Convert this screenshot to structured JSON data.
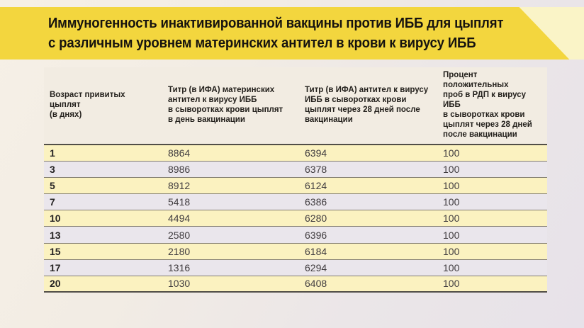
{
  "slide": {
    "title": "Иммуногенность инактивированной вакцины против ИББ для цыплят\nс различным уровнем материнских антител в крови к вирусу ИББ"
  },
  "colors": {
    "banner_yellow": "#F3D63E",
    "banner_pale_yellow": "#FAF4C7",
    "row_stripe_yellow": "#FBF2C0",
    "row_stripe_gray": "#EAE6EC",
    "separator_dark": "#514E47",
    "separator_light": "#837E72",
    "title_text": "#16130F"
  },
  "table": {
    "columns": [
      {
        "header": "Возраст привитых\nцыплят\n(в днях)"
      },
      {
        "header": "Титр (в ИФА) материнских\nантител к вирусу ИББ\nв сыворотках крови цыплят\nв день вакцинации"
      },
      {
        "header": "Титр (в ИФА) антител  к вирусу\nИББ в сыворотках крови\nцыплят через 28 дней после\nвакцинации"
      },
      {
        "header": "Процент положительных\nпроб в РДП к вирусу ИББ\nв сыворотках крови\nцыплят через 28 дней\nпосле вакцинации"
      }
    ],
    "rows": [
      {
        "age": "1",
        "maternal_titer_elisa": "8864",
        "titer_28d_elisa": "6394",
        "rdp_positive_percent": "100"
      },
      {
        "age": "3",
        "maternal_titer_elisa": "8986",
        "titer_28d_elisa": "6378",
        "rdp_positive_percent": "100"
      },
      {
        "age": "5",
        "maternal_titer_elisa": "8912",
        "titer_28d_elisa": "6124",
        "rdp_positive_percent": "100"
      },
      {
        "age": "7",
        "maternal_titer_elisa": "5418",
        "titer_28d_elisa": "6386",
        "rdp_positive_percent": "100"
      },
      {
        "age": "10",
        "maternal_titer_elisa": "4494",
        "titer_28d_elisa": "6280",
        "rdp_positive_percent": "100"
      },
      {
        "age": "13",
        "maternal_titer_elisa": "2580",
        "titer_28d_elisa": "6396",
        "rdp_positive_percent": "100"
      },
      {
        "age": "15",
        "maternal_titer_elisa": "2180",
        "titer_28d_elisa": "6184",
        "rdp_positive_percent": "100"
      },
      {
        "age": "17",
        "maternal_titer_elisa": "1316",
        "titer_28d_elisa": "6294",
        "rdp_positive_percent": "100"
      },
      {
        "age": "20",
        "maternal_titer_elisa": "1030",
        "titer_28d_elisa": "6408",
        "rdp_positive_percent": "100"
      }
    ]
  },
  "chart_data": {
    "type": "table",
    "title": "Иммуногенность инактивированной вакцины против ИББ для цыплят с различным уровнем материнских антител в крови к вирусу ИББ",
    "columns": [
      "Возраст привитых цыплят (в днях)",
      "Титр (в ИФА) материнских антител к вирусу ИББ в сыворотках крови цыплят в день вакцинации",
      "Титр (в ИФА) антител к вирусу ИББ в сыворотках крови цыплят через 28 дней после вакцинации",
      "Процент положительных проб в РДП к вирусу ИББ в сыворотках крови цыплят через 28 дней после вакцинации"
    ],
    "rows": [
      [
        1,
        8864,
        6394,
        100
      ],
      [
        3,
        8986,
        6378,
        100
      ],
      [
        5,
        8912,
        6124,
        100
      ],
      [
        7,
        5418,
        6386,
        100
      ],
      [
        10,
        4494,
        6280,
        100
      ],
      [
        13,
        2580,
        6396,
        100
      ],
      [
        15,
        2180,
        6184,
        100
      ],
      [
        17,
        1316,
        6294,
        100
      ],
      [
        20,
        1030,
        6408,
        100
      ]
    ]
  }
}
